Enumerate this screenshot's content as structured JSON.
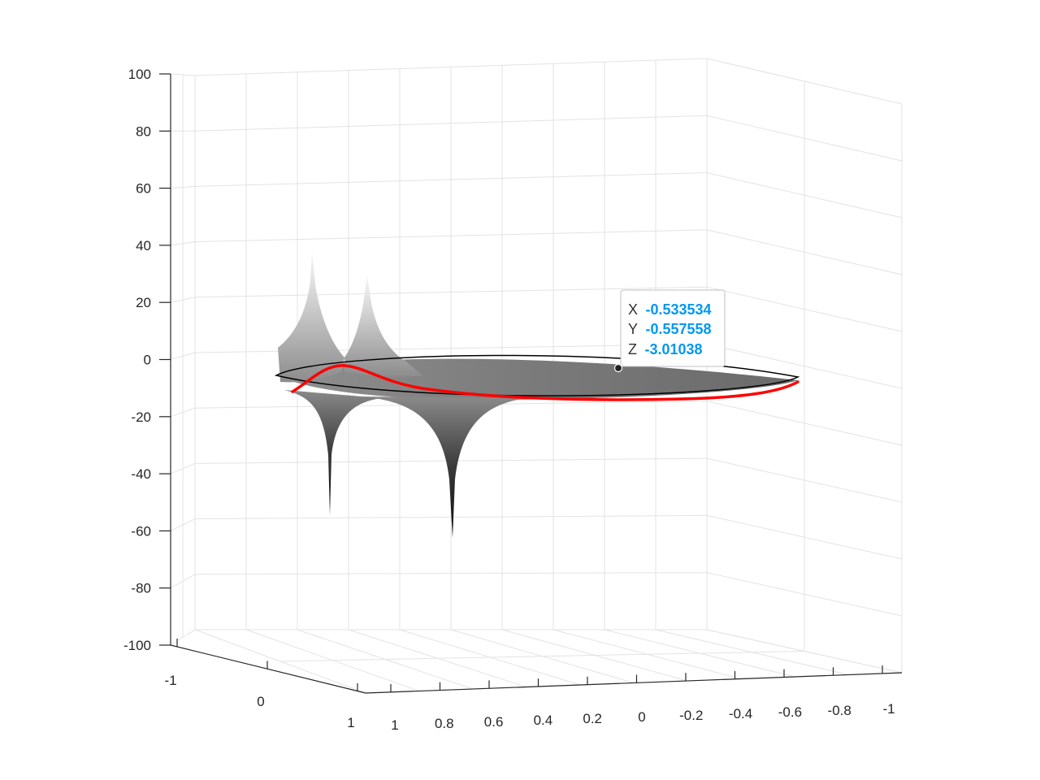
{
  "chart_data": {
    "type": "surface",
    "title": "",
    "xlabel": "",
    "ylabel": "",
    "zlabel": "",
    "xlim": [
      -1,
      1
    ],
    "ylim": [
      -1,
      1
    ],
    "zlim": [
      -100,
      100
    ],
    "grid": true,
    "colormap": "gray",
    "x_ticks": [
      "1",
      "0.8",
      "0.6",
      "0.4",
      "0.2",
      "0",
      "-0.2",
      "-0.4",
      "-0.6",
      "-0.8",
      "-1"
    ],
    "y_ticks": [
      "-1",
      "0",
      "1"
    ],
    "z_ticks": [
      "100",
      "80",
      "60",
      "40",
      "20",
      "0",
      "-20",
      "-40",
      "-60",
      "-80",
      "-100"
    ],
    "surface_features": [
      {
        "kind": "spike-up",
        "z_peak": 38
      },
      {
        "kind": "spike-up",
        "z_peak": 30
      },
      {
        "kind": "spike-down",
        "z_peak": -54
      },
      {
        "kind": "spike-down",
        "z_peak": -62
      }
    ],
    "series": [
      {
        "kind": "circle-outline",
        "color": "#000000",
        "z": -6
      },
      {
        "kind": "boundary-curve",
        "color": "#ff0000",
        "z_range": [
          -12,
          -2
        ]
      }
    ],
    "datatip": {
      "x_label": "X",
      "x_value": "-0.533534",
      "y_label": "Y",
      "y_value": "-0.557558",
      "z_label": "Z",
      "z_value": "-3.01038"
    }
  }
}
